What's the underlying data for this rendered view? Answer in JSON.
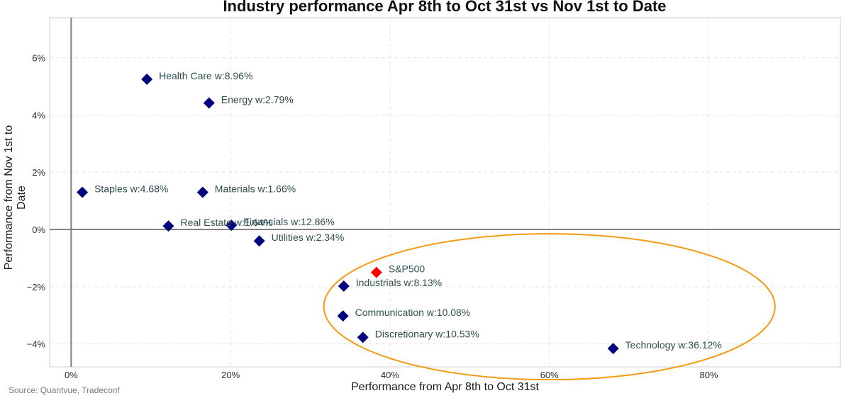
{
  "chart_data": {
    "type": "scatter",
    "title": "Industry performance Apr 8th to Oct 31st vs Nov 1st to Date",
    "xlabel": "Performance from Apr 8th to Oct 31st",
    "ylabel": "Performance from Nov 1st to Date",
    "xlim": [
      -2.7,
      96.5
    ],
    "ylim": [
      -4.8,
      7.4
    ],
    "x_ticks": [
      0,
      20,
      40,
      60,
      80
    ],
    "x_tick_labels": [
      "0%",
      "20%",
      "40%",
      "60%",
      "80%"
    ],
    "y_ticks": [
      -4,
      -2,
      0,
      2,
      4,
      6
    ],
    "y_tick_labels": [
      "−4%",
      "−2%",
      "0%",
      "2%",
      "4%",
      "6%"
    ],
    "grid": true,
    "reference_lines": {
      "x": 0,
      "y": 0
    },
    "points": [
      {
        "label": "Health Care w:8.96%",
        "x": 9.5,
        "y": 5.25,
        "color": "#00007f"
      },
      {
        "label": "Energy w:2.79%",
        "x": 17.3,
        "y": 4.42,
        "color": "#00007f"
      },
      {
        "label": "Staples w:4.68%",
        "x": 1.4,
        "y": 1.3,
        "color": "#00007f"
      },
      {
        "label": "Materials w:1.66%",
        "x": 16.5,
        "y": 1.3,
        "color": "#00007f"
      },
      {
        "label": "Real Estate w:1.64%",
        "x": 12.2,
        "y": 0.12,
        "color": "#00007f"
      },
      {
        "label": "Financials w:12.86%",
        "x": 20.1,
        "y": 0.15,
        "color": "#00007f"
      },
      {
        "label": "Utilities w:2.34%",
        "x": 23.6,
        "y": -0.4,
        "color": "#00007f"
      },
      {
        "label": "S&P500",
        "x": 38.3,
        "y": -1.5,
        "color": "#ff0000"
      },
      {
        "label": "Industrials w:8.13%",
        "x": 34.2,
        "y": -1.98,
        "color": "#00007f"
      },
      {
        "label": "Communication w:10.08%",
        "x": 34.1,
        "y": -3.02,
        "color": "#00007f"
      },
      {
        "label": "Discretionary w:10.53%",
        "x": 36.6,
        "y": -3.77,
        "color": "#00007f"
      },
      {
        "label": "Technology w:36.12%",
        "x": 68.0,
        "y": -4.16,
        "color": "#00007f"
      }
    ],
    "highlight_ellipse": {
      "cx": 60.0,
      "cy": -2.7,
      "rx": 28.3,
      "ry": 2.55,
      "color": "#f39c12"
    }
  },
  "source": "Source: Quantvue, Tradeconf"
}
